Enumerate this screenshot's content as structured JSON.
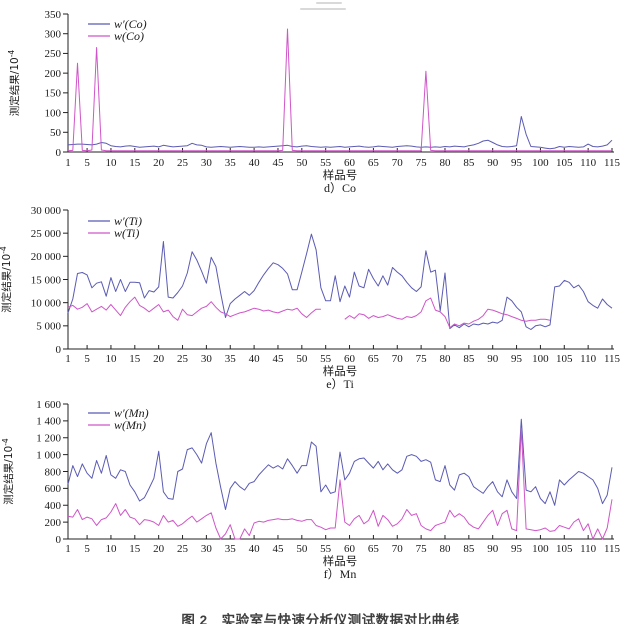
{
  "caption": "图 2　实验室与快速分析仪测试数据对比曲线",
  "colors": {
    "series_blue": "#5b5bb3",
    "series_magenta": "#cf56c8",
    "axis": "#222222"
  },
  "chart_data": [
    {
      "type": "line",
      "key": "co",
      "subtitle": "d）Co",
      "xlabel": "样品号",
      "ylabel": "测定结果/10",
      "ylabel_sup": "-4",
      "ylim": [
        0,
        350
      ],
      "ytick_values": [
        0,
        50,
        100,
        150,
        200,
        250,
        300,
        350
      ],
      "ytick_labels": [
        "0",
        "50",
        "100",
        "150",
        "200",
        "250",
        "300",
        "350"
      ],
      "xticks": [
        1,
        5,
        10,
        15,
        20,
        25,
        30,
        35,
        40,
        45,
        50,
        55,
        60,
        65,
        70,
        75,
        80,
        85,
        90,
        95,
        100,
        105,
        110,
        115
      ],
      "xlim": [
        1,
        115
      ],
      "grid": false,
      "legend_position": "top-left",
      "series": [
        {
          "name": "w′(Co)",
          "color": "#5b5bb3",
          "values": [
            18,
            19,
            20,
            20,
            19,
            18,
            20,
            24,
            22,
            16,
            14,
            13,
            15,
            16,
            14,
            12,
            13,
            14,
            15,
            13,
            17,
            15,
            13,
            14,
            15,
            16,
            22,
            18,
            17,
            13,
            12,
            13,
            14,
            13,
            12,
            13,
            14,
            13,
            12,
            12,
            13,
            12,
            13,
            14,
            15,
            16,
            17,
            14,
            13,
            15,
            16,
            14,
            13,
            12,
            13,
            12,
            13,
            14,
            12,
            13,
            14,
            15,
            13,
            12,
            13,
            15,
            14,
            13,
            12,
            14,
            15,
            16,
            15,
            13,
            12,
            13,
            12,
            13,
            12,
            14,
            13,
            15,
            14,
            13,
            16,
            18,
            22,
            28,
            30,
            24,
            18,
            14,
            13,
            14,
            16,
            90,
            45,
            14,
            13,
            12,
            10,
            8,
            10,
            14,
            12,
            14,
            13,
            12,
            13,
            20,
            14,
            13,
            15,
            18,
            30
          ]
        },
        {
          "name": "w(Co)",
          "color": "#cf56c8",
          "values": [
            3,
            4,
            225,
            4,
            3,
            5,
            265,
            5,
            3,
            3,
            3,
            3,
            3,
            3,
            3,
            3,
            3,
            3,
            3,
            3,
            3,
            3,
            3,
            3,
            3,
            3,
            3,
            3,
            3,
            3,
            3,
            3,
            3,
            3,
            3,
            3,
            3,
            3,
            3,
            3,
            3,
            3,
            3,
            3,
            3,
            4,
            312,
            4,
            3,
            3,
            3,
            3,
            3,
            3,
            3,
            3,
            3,
            3,
            3,
            3,
            3,
            3,
            3,
            3,
            3,
            3,
            3,
            3,
            3,
            3,
            3,
            3,
            3,
            3,
            3,
            205,
            4,
            3,
            3,
            3,
            3,
            3,
            3,
            3,
            3,
            3,
            3,
            3,
            3,
            3,
            3,
            3,
            3,
            3,
            3,
            3,
            3,
            3,
            3,
            3,
            3,
            3,
            3,
            3,
            3,
            3,
            3,
            3,
            3,
            3,
            3,
            3,
            3,
            3,
            3
          ]
        }
      ]
    },
    {
      "type": "line",
      "key": "ti",
      "subtitle": "e）Ti",
      "xlabel": "样品号",
      "ylabel": "测定结果/10",
      "ylabel_sup": "-4",
      "ylim": [
        0,
        30000
      ],
      "ytick_values": [
        0,
        5000,
        10000,
        15000,
        20000,
        25000,
        30000
      ],
      "ytick_labels": [
        "0",
        "5 000",
        "10 000",
        "15 000",
        "20 000",
        "25 000",
        "30 000"
      ],
      "xticks": [
        1,
        5,
        10,
        15,
        20,
        25,
        30,
        35,
        40,
        45,
        50,
        55,
        60,
        65,
        70,
        75,
        80,
        85,
        90,
        95,
        100,
        105,
        110,
        115
      ],
      "xlim": [
        1,
        115
      ],
      "grid": false,
      "legend_position": "top-left",
      "series": [
        {
          "name": "w′(Ti)",
          "color": "#5b5bb3",
          "values": [
            7800,
            10800,
            16300,
            16500,
            16000,
            13200,
            14200,
            14500,
            11400,
            15400,
            12400,
            15000,
            12400,
            14400,
            14400,
            14300,
            11000,
            12600,
            12300,
            13400,
            23200,
            11200,
            11000,
            12200,
            13600,
            16400,
            21000,
            19200,
            16800,
            14200,
            19800,
            17800,
            12000,
            6800,
            9800,
            10800,
            11600,
            12400,
            11600,
            12600,
            14400,
            16000,
            17400,
            18600,
            18200,
            17400,
            16200,
            12800,
            12800,
            16600,
            20600,
            24800,
            21400,
            13200,
            10400,
            10400,
            15800,
            10200,
            13600,
            11200,
            16600,
            13600,
            13200,
            17200,
            15200,
            13600,
            15800,
            13800,
            17600,
            16600,
            15800,
            14400,
            13200,
            12400,
            13400,
            21200,
            16600,
            17000,
            8200,
            16400,
            4400,
            5200,
            4600,
            5400,
            4800,
            5400,
            5200,
            5600,
            5400,
            5800,
            5600,
            6200,
            11200,
            10400,
            9000,
            8000,
            4800,
            4200,
            5000,
            5200,
            4800,
            5200,
            13400,
            13600,
            14800,
            14400,
            13200,
            13800,
            12400,
            10200,
            9400,
            8800,
            10800,
            9600,
            8800
          ]
        },
        {
          "name": "w(Ti)",
          "color": "#cf56c8",
          "values": [
            9000,
            9400,
            8600,
            9000,
            9800,
            8000,
            8600,
            9200,
            8400,
            9600,
            8400,
            7200,
            9000,
            10200,
            11200,
            9400,
            8800,
            8000,
            8800,
            9600,
            8000,
            8400,
            7000,
            6200,
            8600,
            7400,
            7200,
            8000,
            8800,
            9200,
            10200,
            9000,
            8000,
            7600,
            7000,
            7400,
            7800,
            8000,
            8400,
            8800,
            8600,
            8200,
            8400,
            8000,
            7800,
            8200,
            8600,
            8400,
            8800,
            7600,
            6800,
            7800,
            8600,
            8600,
            null,
            null,
            null,
            null,
            6400,
            7200,
            6600,
            7600,
            7400,
            6600,
            7200,
            6800,
            7000,
            7400,
            7000,
            6600,
            6400,
            7000,
            6800,
            7200,
            8000,
            10400,
            11000,
            8400,
            8000,
            7000,
            4600,
            5400,
            5000,
            5600,
            5400,
            6000,
            6400,
            7200,
            8600,
            8400,
            8000,
            7600,
            7400,
            7000,
            6600,
            6200,
            6000,
            6200,
            6200,
            6400,
            6400,
            6200,
            null,
            null,
            null,
            null,
            null,
            null,
            null,
            null,
            null,
            null,
            null,
            null,
            null
          ]
        }
      ]
    },
    {
      "type": "line",
      "key": "mn",
      "subtitle": "f）Mn",
      "xlabel": "样品号",
      "ylabel": "测定结果/10",
      "ylabel_sup": "-4",
      "ylim": [
        0,
        1600
      ],
      "ytick_values": [
        0,
        200,
        400,
        600,
        800,
        1000,
        1200,
        1400,
        1600
      ],
      "ytick_labels": [
        "0",
        "200",
        "400",
        "600",
        "800",
        "1 000",
        "1 200",
        "1 400",
        "1 600"
      ],
      "xticks": [
        1,
        5,
        10,
        15,
        20,
        25,
        30,
        35,
        40,
        45,
        50,
        55,
        60,
        65,
        70,
        75,
        80,
        85,
        90,
        95,
        100,
        105,
        110,
        115
      ],
      "xlim": [
        1,
        115
      ],
      "grid": false,
      "legend_position": "top-left",
      "series": [
        {
          "name": "w′(Mn)",
          "color": "#5b5bb3",
          "values": [
            650,
            870,
            740,
            890,
            780,
            720,
            930,
            780,
            990,
            760,
            720,
            820,
            800,
            640,
            560,
            450,
            490,
            600,
            720,
            1040,
            560,
            480,
            470,
            800,
            830,
            1060,
            1080,
            1000,
            900,
            1130,
            1260,
            900,
            610,
            350,
            600,
            680,
            620,
            580,
            660,
            680,
            760,
            820,
            880,
            840,
            870,
            830,
            950,
            870,
            780,
            870,
            870,
            1150,
            1100,
            560,
            640,
            540,
            560,
            1030,
            700,
            780,
            920,
            950,
            960,
            900,
            840,
            920,
            820,
            890,
            820,
            780,
            820,
            980,
            1000,
            980,
            920,
            940,
            910,
            700,
            680,
            870,
            640,
            580,
            760,
            780,
            740,
            620,
            580,
            540,
            620,
            680,
            560,
            500,
            700,
            560,
            480,
            1420,
            580,
            560,
            620,
            480,
            420,
            560,
            400,
            700,
            640,
            700,
            750,
            800,
            780,
            740,
            700,
            600,
            420,
            520,
            850
          ]
        },
        {
          "name": "w(Mn)",
          "color": "#cf56c8",
          "values": [
            270,
            260,
            350,
            230,
            260,
            240,
            160,
            230,
            250,
            320,
            420,
            280,
            350,
            260,
            240,
            170,
            230,
            220,
            200,
            160,
            280,
            200,
            220,
            150,
            180,
            230,
            270,
            200,
            240,
            280,
            310,
            130,
            0,
            60,
            170,
            0,
            0,
            120,
            40,
            190,
            210,
            200,
            220,
            230,
            240,
            230,
            230,
            240,
            220,
            210,
            230,
            230,
            160,
            140,
            110,
            130,
            130,
            700,
            200,
            160,
            240,
            280,
            180,
            220,
            340,
            150,
            280,
            230,
            150,
            180,
            240,
            350,
            280,
            300,
            160,
            120,
            100,
            160,
            180,
            200,
            340,
            260,
            300,
            260,
            180,
            140,
            120,
            200,
            280,
            340,
            160,
            300,
            340,
            120,
            100,
            1310,
            120,
            110,
            100,
            110,
            130,
            90,
            100,
            160,
            140,
            120,
            200,
            240,
            100,
            180,
            0,
            120,
            0,
            130,
            470
          ]
        }
      ]
    }
  ]
}
